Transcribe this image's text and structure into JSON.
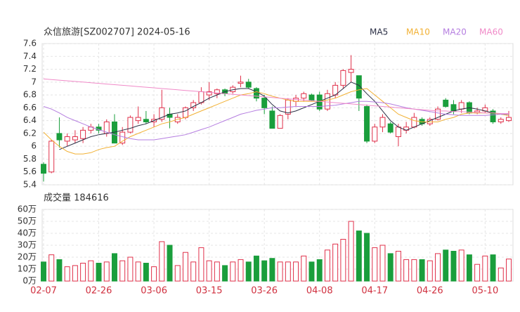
{
  "chart_data": {
    "type": "candlestick",
    "title": "众信旅游[SZ002707] 2024-05-16",
    "categories": [
      "02-07",
      null,
      null,
      null,
      null,
      null,
      null,
      "02-26",
      null,
      null,
      null,
      null,
      null,
      null,
      "03-06",
      null,
      null,
      null,
      null,
      null,
      null,
      "03-15",
      null,
      null,
      null,
      null,
      null,
      null,
      "03-26",
      null,
      null,
      null,
      null,
      null,
      null,
      "04-08",
      null,
      null,
      null,
      null,
      null,
      null,
      "04-17",
      null,
      null,
      null,
      null,
      null,
      null,
      "04-26",
      null,
      null,
      null,
      null,
      null,
      null,
      "05-10",
      null,
      null,
      null
    ],
    "open": [
      5.72,
      5.6,
      6.2,
      6.08,
      6.1,
      6.12,
      6.25,
      6.3,
      6.2,
      6.38,
      6.05,
      6.22,
      6.4,
      6.42,
      6.38,
      6.42,
      6.5,
      6.38,
      6.45,
      6.6,
      6.68,
      6.8,
      6.82,
      6.88,
      6.85,
      6.98,
      7.0,
      6.9,
      6.75,
      6.55,
      6.28,
      6.5,
      6.7,
      6.75,
      6.8,
      6.8,
      6.58,
      6.8,
      6.95,
      7.15,
      7.1,
      6.62,
      6.08,
      6.3,
      6.35,
      6.15,
      6.25,
      6.3,
      6.42,
      6.35,
      6.42,
      6.72,
      6.65,
      6.58,
      6.68,
      6.52,
      6.55,
      6.55,
      6.38,
      6.4
    ],
    "high": [
      5.75,
      6.1,
      6.45,
      6.2,
      6.25,
      6.3,
      6.35,
      6.35,
      6.42,
      6.5,
      6.3,
      6.48,
      6.62,
      6.55,
      6.5,
      6.88,
      6.6,
      6.5,
      6.62,
      6.72,
      6.92,
      7.0,
      6.9,
      6.9,
      6.95,
      7.1,
      7.05,
      6.92,
      6.8,
      6.62,
      6.5,
      6.75,
      6.8,
      6.85,
      6.82,
      6.85,
      6.88,
      7.0,
      7.2,
      7.42,
      7.1,
      6.65,
      6.35,
      6.5,
      6.38,
      6.35,
      6.38,
      6.52,
      6.45,
      6.45,
      6.62,
      6.75,
      6.72,
      6.72,
      6.7,
      6.6,
      6.65,
      6.58,
      6.45,
      6.55
    ],
    "low": [
      5.45,
      5.58,
      5.98,
      6.0,
      6.05,
      6.05,
      6.2,
      6.2,
      6.15,
      6.05,
      6.02,
      6.2,
      6.35,
      6.35,
      6.3,
      6.38,
      6.28,
      6.35,
      6.42,
      6.55,
      6.65,
      6.72,
      6.75,
      6.78,
      6.82,
      6.92,
      6.9,
      6.7,
      6.5,
      6.28,
      6.28,
      6.42,
      6.62,
      6.7,
      6.7,
      6.55,
      6.55,
      6.75,
      6.9,
      7.0,
      6.55,
      6.05,
      6.05,
      6.22,
      6.2,
      6.0,
      6.2,
      6.28,
      6.32,
      6.32,
      6.4,
      6.6,
      6.5,
      6.52,
      6.5,
      6.5,
      6.52,
      6.35,
      6.35,
      6.38
    ],
    "close": [
      5.58,
      6.08,
      6.1,
      6.15,
      6.15,
      6.25,
      6.3,
      6.25,
      6.38,
      6.05,
      6.22,
      6.45,
      6.45,
      6.38,
      6.42,
      6.6,
      6.45,
      6.45,
      6.6,
      6.68,
      6.85,
      6.85,
      6.88,
      6.82,
      6.92,
      7.0,
      6.92,
      6.75,
      6.6,
      6.28,
      6.48,
      6.72,
      6.75,
      6.82,
      6.72,
      6.58,
      6.82,
      6.95,
      7.18,
      7.2,
      6.75,
      6.08,
      6.3,
      6.45,
      6.22,
      6.3,
      6.3,
      6.45,
      6.35,
      6.42,
      6.58,
      6.62,
      6.55,
      6.68,
      6.52,
      6.55,
      6.6,
      6.38,
      6.42,
      6.45
    ],
    "up_color": "#e0304a",
    "down_color": "#1a9e3c",
    "ylim": [
      5.4,
      7.6
    ],
    "yticks": [
      5.4,
      5.6,
      5.8,
      6,
      6.2,
      6.4,
      6.6,
      6.8,
      7,
      7.2,
      7.4,
      7.6
    ],
    "grid": true,
    "series": [
      {
        "name": "MA5",
        "color": "#2b2f45",
        "values": [
          null,
          null,
          5.95,
          6.0,
          6.05,
          6.1,
          6.15,
          6.18,
          6.2,
          6.22,
          6.25,
          6.28,
          6.32,
          6.35,
          6.4,
          6.45,
          6.5,
          6.52,
          6.55,
          6.62,
          6.68,
          6.75,
          6.8,
          6.85,
          6.88,
          6.9,
          6.9,
          6.85,
          6.78,
          6.65,
          6.55,
          6.52,
          6.55,
          6.6,
          6.65,
          6.7,
          6.75,
          6.8,
          6.9,
          7.0,
          6.95,
          6.82,
          6.7,
          6.55,
          6.4,
          6.3,
          6.25,
          6.3,
          6.35,
          6.4,
          6.45,
          6.5,
          6.55,
          6.58,
          6.6,
          6.58,
          6.55,
          6.52,
          6.5,
          6.48
        ]
      },
      {
        "name": "MA10",
        "color": "#f2b134",
        "values": [
          6.22,
          6.1,
          6.0,
          5.92,
          5.88,
          5.88,
          5.9,
          5.95,
          5.98,
          6.0,
          6.08,
          6.15,
          6.2,
          6.25,
          6.3,
          6.35,
          6.38,
          6.42,
          6.45,
          6.5,
          6.55,
          6.6,
          6.65,
          6.7,
          6.75,
          6.8,
          6.82,
          6.85,
          6.82,
          6.78,
          6.75,
          6.72,
          6.7,
          6.7,
          6.7,
          6.7,
          6.72,
          6.75,
          6.8,
          6.85,
          6.88,
          6.9,
          6.8,
          6.7,
          6.6,
          6.5,
          6.45,
          6.4,
          6.38,
          6.38,
          6.38,
          6.42,
          6.45,
          6.5,
          6.52,
          6.52,
          6.52,
          6.52,
          6.5,
          6.48
        ]
      },
      {
        "name": "MA20",
        "color": "#b57ee0",
        "values": [
          6.62,
          6.58,
          6.52,
          6.45,
          6.4,
          6.35,
          6.3,
          6.26,
          6.22,
          6.18,
          6.15,
          6.12,
          6.1,
          6.1,
          6.1,
          6.12,
          6.14,
          6.16,
          6.18,
          6.22,
          6.26,
          6.3,
          6.35,
          6.4,
          6.45,
          6.5,
          6.53,
          6.56,
          6.58,
          6.6,
          6.6,
          6.61,
          6.62,
          6.62,
          6.62,
          6.62,
          6.63,
          6.64,
          6.66,
          6.68,
          6.7,
          6.7,
          6.69,
          6.68,
          6.66,
          6.63,
          6.6,
          6.58,
          6.56,
          6.54,
          6.52,
          6.5,
          6.49,
          6.48,
          6.48,
          6.48,
          6.48,
          6.49,
          6.5,
          6.5
        ]
      },
      {
        "name": "MA60",
        "color": "#f08ac8",
        "values": [
          7.05,
          7.04,
          7.03,
          7.02,
          7.01,
          7.0,
          6.99,
          6.98,
          6.97,
          6.96,
          6.95,
          6.94,
          6.93,
          6.92,
          6.91,
          6.9,
          6.89,
          6.88,
          6.87,
          6.86,
          6.85,
          6.84,
          6.83,
          6.82,
          6.81,
          6.8,
          6.79,
          6.78,
          6.77,
          6.76,
          6.75,
          6.74,
          6.73,
          6.72,
          6.71,
          6.7,
          6.69,
          6.68,
          6.67,
          6.66,
          6.65,
          6.64,
          6.63,
          6.62,
          6.61,
          6.6,
          6.59,
          6.58,
          6.57,
          6.56,
          6.55,
          6.55,
          6.54,
          6.54,
          6.53,
          6.53,
          6.52,
          6.52,
          6.51,
          6.51
        ]
      }
    ],
    "volume": {
      "title": "成交量 184616",
      "values": [
        16,
        22,
        18,
        12,
        13,
        15,
        17,
        15,
        16,
        23,
        17,
        20,
        16,
        15,
        12,
        33,
        30,
        13,
        24,
        16,
        28,
        17,
        16,
        13,
        16,
        18,
        16,
        21,
        17,
        19,
        16,
        16,
        16,
        21,
        16,
        18,
        26,
        31,
        35,
        50,
        42,
        40,
        28,
        30,
        23,
        25,
        18,
        18,
        18,
        17,
        23,
        26,
        25,
        26,
        22,
        14,
        21,
        22,
        11,
        18.4616
      ],
      "ylim": [
        0,
        60
      ],
      "yticks": [
        {
          "value": 0,
          "label": "0万"
        },
        {
          "value": 10,
          "label": "10万"
        },
        {
          "value": 20,
          "label": "20万"
        },
        {
          "value": 30,
          "label": "30万"
        },
        {
          "value": 40,
          "label": "40万"
        },
        {
          "value": 50,
          "label": "50万"
        },
        {
          "value": 60,
          "label": "60万"
        }
      ]
    }
  }
}
